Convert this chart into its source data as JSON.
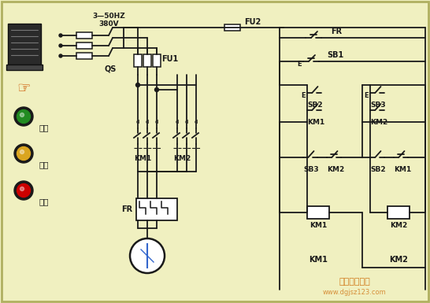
{
  "bg_color": "#f0f0c0",
  "line_color": "#1a1a1a",
  "fig_width": 5.46,
  "fig_height": 3.85,
  "top_label1": "3—50HZ",
  "top_label2": "380V",
  "fu2_label": "FU2",
  "fu1_label": "FU1",
  "qs_label": "QS",
  "fr_label_top": "FR",
  "fr_label_bot": "FR",
  "sb1_label": "SB1",
  "sb2_label1": "SB2",
  "sb2_label2": "SB2",
  "sb3_label1": "SB3",
  "sb3_label2": "SB3",
  "km1_label1": "KM1",
  "km1_label2": "KM1",
  "km1_label3": "KM1",
  "km2_label1": "KM2",
  "km2_label2": "KM2",
  "km2_label3": "KM2",
  "zhengzhuan": "正转",
  "fanzhuan": "反转",
  "tingzhi": "停止",
  "watermark": "电工技术之家",
  "watermark2": "www.dgjsz123.com",
  "green_btn_color": "#228B22",
  "yellow_btn_color": "#DAA520",
  "red_btn_color": "#CC0000",
  "btn_outer_color": "#1a1a1a",
  "border_color": "#aaaaaa"
}
